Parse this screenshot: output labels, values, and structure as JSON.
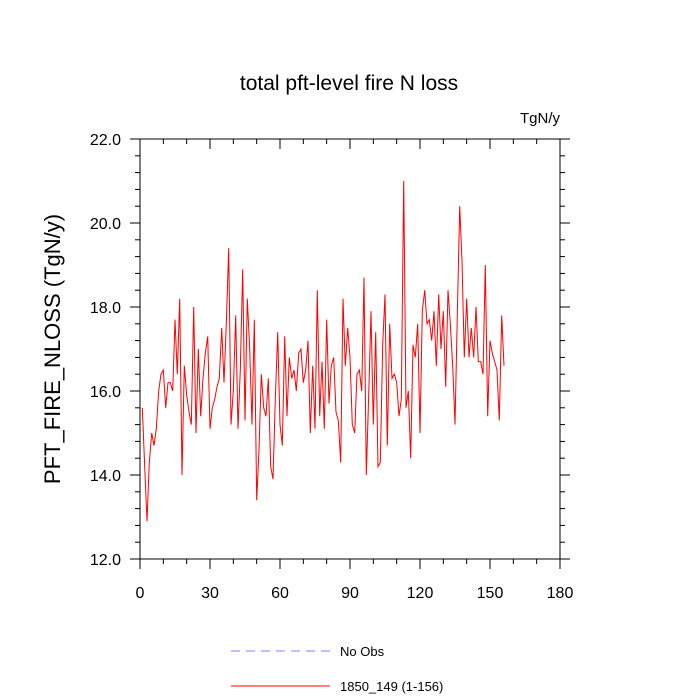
{
  "chart_data": {
    "type": "line",
    "title": "total pft-level fire N loss",
    "units_label": "TgN/y",
    "ylabel": "PFT_FIRE_NLOSS  (TgN/y)",
    "xlabel": "",
    "xlim": [
      0,
      180
    ],
    "ylim": [
      12,
      22
    ],
    "x_ticks": [
      0,
      30,
      60,
      90,
      120,
      150,
      180
    ],
    "x_tick_labels": [
      "0",
      "30",
      "60",
      "90",
      "120",
      "150",
      "180"
    ],
    "y_ticks": [
      12,
      14,
      16,
      18,
      20,
      22
    ],
    "y_tick_labels": [
      "12.0",
      "14.0",
      "16.0",
      "18.0",
      "20.0",
      "22.0"
    ],
    "grid": false,
    "legend_position": "bottom-center",
    "legend": [
      {
        "label": "No Obs",
        "color": "#8080ff",
        "dash": "dashed"
      },
      {
        "label": "1850_149 (1-156)",
        "color": "#ff0000",
        "dash": "solid"
      }
    ],
    "series": [
      {
        "name": "1850_149 (1-156)",
        "color": "#ff0000",
        "x_start": 1,
        "values": [
          15.6,
          14.2,
          12.9,
          14.3,
          15.0,
          14.7,
          15.1,
          16.0,
          16.4,
          16.5,
          15.6,
          16.2,
          16.2,
          16.0,
          17.7,
          16.4,
          18.2,
          14.0,
          16.6,
          15.9,
          15.5,
          15.2,
          18.0,
          15.0,
          17.0,
          15.4,
          16.3,
          16.9,
          17.3,
          15.1,
          15.6,
          15.8,
          16.1,
          16.3,
          17.5,
          16.2,
          17.6,
          19.4,
          15.2,
          16.0,
          17.8,
          15.1,
          16.5,
          18.9,
          15.3,
          18.2,
          17.0,
          15.2,
          17.7,
          13.4,
          14.6,
          16.4,
          15.6,
          15.4,
          16.3,
          14.2,
          13.9,
          15.8,
          17.4,
          15.2,
          14.7,
          17.3,
          15.4,
          16.8,
          16.3,
          16.5,
          16.0,
          16.9,
          17.0,
          16.2,
          16.5,
          17.2,
          15.0,
          16.6,
          15.1,
          18.4,
          15.4,
          16.7,
          15.1,
          17.7,
          15.7,
          16.6,
          16.8,
          15.5,
          15.3,
          14.3,
          18.2,
          16.6,
          17.5,
          16.8,
          15.2,
          15.0,
          16.4,
          16.5,
          16.0,
          18.7,
          14.0,
          15.9,
          17.9,
          15.2,
          17.4,
          14.2,
          14.3,
          17.1,
          18.3,
          14.7,
          17.6,
          16.3,
          16.4,
          16.2,
          15.4,
          15.8,
          21.0,
          15.6,
          16.0,
          14.4,
          17.1,
          16.8,
          17.6,
          15.0,
          17.9,
          18.4,
          17.6,
          17.7,
          17.2,
          17.9,
          16.6,
          18.3,
          17.0,
          17.9,
          16.1,
          18.4,
          17.6,
          16.6,
          15.2,
          17.8,
          20.4,
          19.1,
          16.8,
          18.2,
          16.8,
          17.5,
          16.8,
          18.0,
          16.7,
          16.7,
          16.4,
          19.0,
          15.4,
          17.2,
          16.9,
          16.7,
          16.5,
          15.3,
          17.8,
          16.6
        ]
      }
    ]
  }
}
